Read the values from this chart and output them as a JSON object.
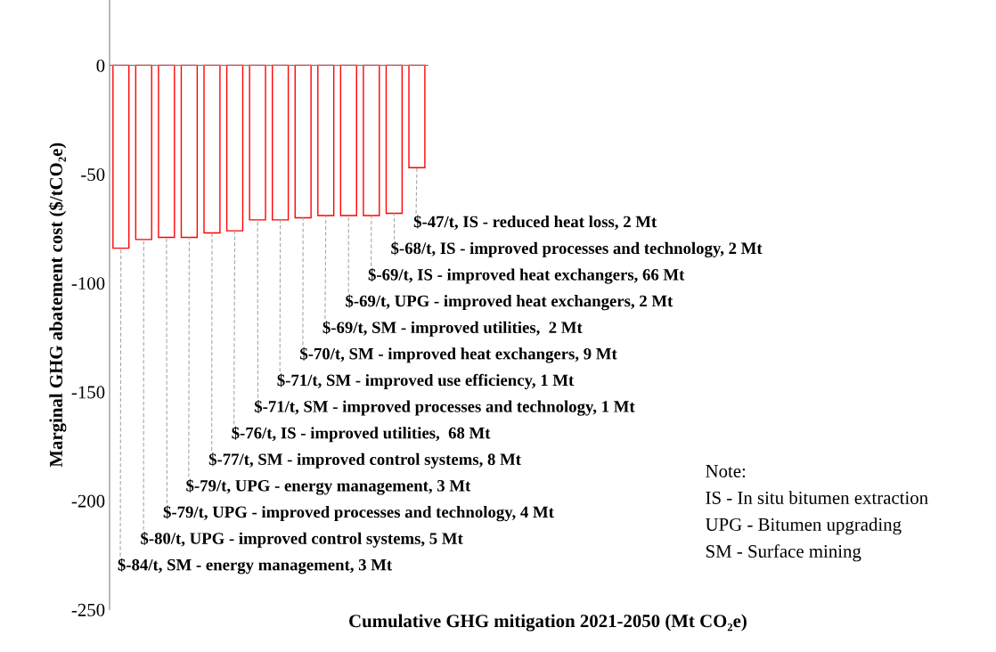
{
  "chart_data": {
    "type": "bar",
    "xlabel": "Cumulative GHG mitigation 2021-2050 (Mt CO₂e)",
    "ylabel": "Marginal GHG abatement cost ($/tCO₂e)",
    "categories": [
      null,
      null,
      null,
      null,
      null,
      null,
      null,
      null,
      null,
      null,
      null,
      null,
      null,
      null
    ],
    "values": [
      -84,
      -80,
      -79,
      -79,
      -77,
      -76,
      -71,
      -71,
      -70,
      -69,
      -69,
      -69,
      -68,
      -47
    ],
    "value_labels": [
      "$-84/t, SM - energy management, 3 Mt",
      "$-80/t, UPG - improved control systems, 5 Mt",
      "$-79/t, UPG - improved processes and technology, 4 Mt",
      "$-79/t, UPG - energy management, 3 Mt",
      "$-77/t, SM - improved control systems, 8 Mt",
      "$-76/t, IS - improved utilities,  68 Mt",
      "$-71/t, SM - improved processes and technology, 1 Mt",
      "$-71/t, SM - improved use efficiency, 1 Mt",
      "$-70/t, SM - improved heat exchangers, 9 Mt",
      "$-69/t, SM - improved utilities,  2 Mt",
      "$-69/t, UPG - improved heat exchangers, 2 Mt",
      "$-69/t, IS - improved heat exchangers, 66 Mt",
      "$-68/t, IS - improved processes and technology, 2 Mt",
      "$-47/t, IS - reduced heat loss, 2 Mt"
    ],
    "color": "#ff0000",
    "ylim": [
      -250,
      30
    ],
    "yticks": [
      -250,
      -200,
      -150,
      -100,
      -50,
      0
    ],
    "tick_labels": "y",
    "grid": false,
    "ref_lines": [
      {
        "axis": "y",
        "value": 0,
        "color": "#808080"
      }
    ],
    "annotations": [
      "Note:",
      "IS - In situ bitumen extraction",
      "UPG - Bitumen upgrading",
      "SM - Surface mining"
    ]
  }
}
